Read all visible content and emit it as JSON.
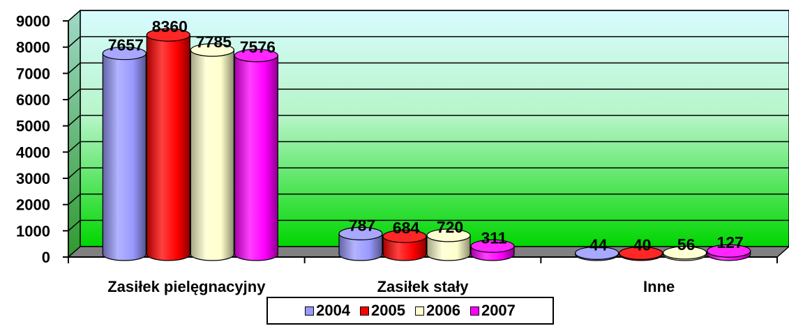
{
  "chart_data": {
    "type": "bar",
    "style": "3d-cylinder",
    "categories": [
      "Zasiłek pielęgnacyjny",
      "Zasiłek stały",
      "Inne"
    ],
    "series": [
      {
        "name": "2004",
        "values": [
          7657,
          787,
          44
        ],
        "color": "#9999FF"
      },
      {
        "name": "2005",
        "values": [
          8360,
          684,
          40
        ],
        "color": "#FF0000"
      },
      {
        "name": "2006",
        "values": [
          7785,
          720,
          56
        ],
        "color": "#FFFFCC"
      },
      {
        "name": "2007",
        "values": [
          7576,
          311,
          127
        ],
        "color": "#FF00FF"
      }
    ],
    "ylim": [
      0,
      9000
    ],
    "yticks": [
      0,
      1000,
      2000,
      3000,
      4000,
      5000,
      6000,
      7000,
      8000,
      9000
    ],
    "grid": true,
    "legend_position": "bottom",
    "background_gradient": [
      "#D8FBFF",
      "#00D600"
    ]
  }
}
